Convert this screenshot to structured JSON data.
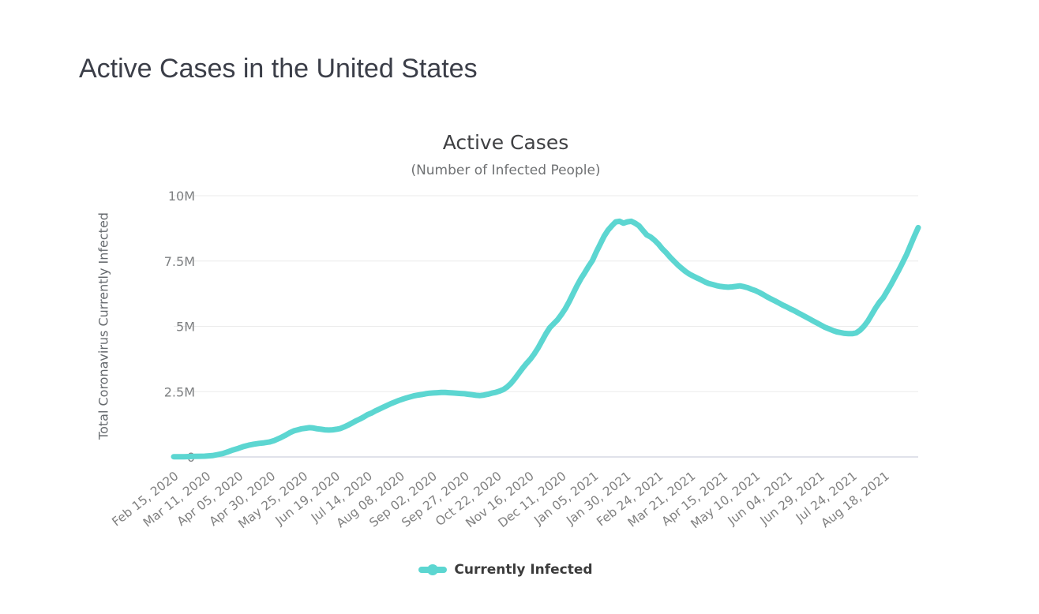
{
  "page": {
    "title": "Active Cases in the United States"
  },
  "chart": {
    "title": "Active Cases",
    "subtitle": "(Number of Infected People)",
    "y_axis_title": "Total Coronavirus Currently Infected",
    "legend_label": "Currently Infected",
    "colors": {
      "line": "#5cd6d1",
      "grid": "#ebebeb",
      "baseline": "#d6d9e4",
      "axis_text": "#7e8082",
      "tick_text": "#808080"
    }
  },
  "chart_data": {
    "type": "line",
    "title": "Active Cases",
    "subtitle": "(Number of Infected People)",
    "xlabel": "",
    "ylabel": "Total Coronavirus Currently Infected",
    "legend_position": "bottom",
    "grid": true,
    "ylim": [
      0,
      10000000
    ],
    "y_unit": "millions",
    "y_tick_values": [
      0,
      2.5,
      5,
      7.5,
      10
    ],
    "y_tick_labels": [
      "0",
      "2.5M",
      "5M",
      "7.5M",
      "10M"
    ],
    "x_tick_interval_days": 25,
    "x_range_days": 576,
    "x_tick_labels": [
      "Feb 15, 2020",
      "Mar 11, 2020",
      "Apr 05, 2020",
      "Apr 30, 2020",
      "May 25, 2020",
      "Jun 19, 2020",
      "Jul 14, 2020",
      "Aug 08, 2020",
      "Sep 02, 2020",
      "Sep 27, 2020",
      "Oct 22, 2020",
      "Nov 16, 2020",
      "Dec 11, 2020",
      "Jan 05, 2021",
      "Jan 30, 2021",
      "Feb 24, 2021",
      "Mar 21, 2021",
      "Apr 15, 2021",
      "May 10, 2021",
      "Jun 04, 2021",
      "Jun 29, 2021",
      "Jul 24, 2021",
      "Aug 18, 2021"
    ],
    "series": [
      {
        "name": "Currently Infected",
        "color": "#5cd6d1",
        "points_day_millions": [
          [
            0,
            0.01
          ],
          [
            8,
            0.01
          ],
          [
            16,
            0.02
          ],
          [
            24,
            0.03
          ],
          [
            30,
            0.05
          ],
          [
            34,
            0.09
          ],
          [
            38,
            0.13
          ],
          [
            42,
            0.2
          ],
          [
            46,
            0.27
          ],
          [
            50,
            0.33
          ],
          [
            54,
            0.4
          ],
          [
            58,
            0.45
          ],
          [
            62,
            0.49
          ],
          [
            66,
            0.52
          ],
          [
            70,
            0.54
          ],
          [
            74,
            0.57
          ],
          [
            78,
            0.63
          ],
          [
            82,
            0.72
          ],
          [
            86,
            0.82
          ],
          [
            90,
            0.93
          ],
          [
            93,
            1.0
          ],
          [
            96,
            1.04
          ],
          [
            99,
            1.08
          ],
          [
            102,
            1.1
          ],
          [
            105,
            1.12
          ],
          [
            108,
            1.11
          ],
          [
            111,
            1.08
          ],
          [
            114,
            1.06
          ],
          [
            117,
            1.04
          ],
          [
            120,
            1.03
          ],
          [
            123,
            1.04
          ],
          [
            126,
            1.06
          ],
          [
            129,
            1.09
          ],
          [
            132,
            1.15
          ],
          [
            135,
            1.22
          ],
          [
            138,
            1.3
          ],
          [
            141,
            1.38
          ],
          [
            144,
            1.45
          ],
          [
            147,
            1.53
          ],
          [
            150,
            1.62
          ],
          [
            153,
            1.68
          ],
          [
            156,
            1.76
          ],
          [
            159,
            1.83
          ],
          [
            162,
            1.9
          ],
          [
            165,
            1.97
          ],
          [
            168,
            2.04
          ],
          [
            171,
            2.1
          ],
          [
            174,
            2.16
          ],
          [
            177,
            2.21
          ],
          [
            180,
            2.26
          ],
          [
            183,
            2.3
          ],
          [
            186,
            2.34
          ],
          [
            189,
            2.37
          ],
          [
            192,
            2.39
          ],
          [
            195,
            2.42
          ],
          [
            198,
            2.44
          ],
          [
            201,
            2.45
          ],
          [
            204,
            2.46
          ],
          [
            207,
            2.47
          ],
          [
            210,
            2.47
          ],
          [
            213,
            2.46
          ],
          [
            216,
            2.45
          ],
          [
            219,
            2.44
          ],
          [
            222,
            2.43
          ],
          [
            225,
            2.42
          ],
          [
            228,
            2.4
          ],
          [
            231,
            2.38
          ],
          [
            234,
            2.36
          ],
          [
            237,
            2.35
          ],
          [
            240,
            2.37
          ],
          [
            243,
            2.4
          ],
          [
            246,
            2.44
          ],
          [
            249,
            2.47
          ],
          [
            252,
            2.52
          ],
          [
            255,
            2.58
          ],
          [
            258,
            2.68
          ],
          [
            261,
            2.82
          ],
          [
            264,
            3.0
          ],
          [
            267,
            3.2
          ],
          [
            270,
            3.4
          ],
          [
            273,
            3.58
          ],
          [
            276,
            3.75
          ],
          [
            279,
            3.95
          ],
          [
            282,
            4.18
          ],
          [
            285,
            4.45
          ],
          [
            288,
            4.72
          ],
          [
            291,
            4.95
          ],
          [
            294,
            5.1
          ],
          [
            297,
            5.25
          ],
          [
            300,
            5.45
          ],
          [
            303,
            5.68
          ],
          [
            306,
            5.95
          ],
          [
            309,
            6.25
          ],
          [
            312,
            6.55
          ],
          [
            315,
            6.82
          ],
          [
            318,
            7.05
          ],
          [
            321,
            7.3
          ],
          [
            324,
            7.52
          ],
          [
            327,
            7.85
          ],
          [
            330,
            8.15
          ],
          [
            333,
            8.45
          ],
          [
            336,
            8.68
          ],
          [
            339,
            8.85
          ],
          [
            342,
            9.0
          ],
          [
            345,
            9.02
          ],
          [
            348,
            8.95
          ],
          [
            351,
            9.0
          ],
          [
            354,
            9.02
          ],
          [
            357,
            8.95
          ],
          [
            360,
            8.85
          ],
          [
            363,
            8.67
          ],
          [
            366,
            8.5
          ],
          [
            369,
            8.42
          ],
          [
            372,
            8.3
          ],
          [
            375,
            8.15
          ],
          [
            378,
            7.97
          ],
          [
            381,
            7.82
          ],
          [
            384,
            7.65
          ],
          [
            387,
            7.5
          ],
          [
            390,
            7.35
          ],
          [
            393,
            7.22
          ],
          [
            396,
            7.1
          ],
          [
            399,
            7.0
          ],
          [
            402,
            6.92
          ],
          [
            405,
            6.85
          ],
          [
            408,
            6.78
          ],
          [
            411,
            6.7
          ],
          [
            414,
            6.64
          ],
          [
            417,
            6.6
          ],
          [
            420,
            6.56
          ],
          [
            423,
            6.53
          ],
          [
            426,
            6.51
          ],
          [
            429,
            6.5
          ],
          [
            432,
            6.51
          ],
          [
            435,
            6.53
          ],
          [
            438,
            6.55
          ],
          [
            441,
            6.52
          ],
          [
            444,
            6.48
          ],
          [
            447,
            6.42
          ],
          [
            450,
            6.37
          ],
          [
            453,
            6.3
          ],
          [
            456,
            6.22
          ],
          [
            459,
            6.13
          ],
          [
            462,
            6.05
          ],
          [
            465,
            5.98
          ],
          [
            468,
            5.9
          ],
          [
            471,
            5.82
          ],
          [
            474,
            5.75
          ],
          [
            477,
            5.67
          ],
          [
            480,
            5.6
          ],
          [
            483,
            5.52
          ],
          [
            486,
            5.44
          ],
          [
            489,
            5.36
          ],
          [
            492,
            5.28
          ],
          [
            495,
            5.2
          ],
          [
            498,
            5.12
          ],
          [
            501,
            5.04
          ],
          [
            504,
            4.96
          ],
          [
            507,
            4.9
          ],
          [
            510,
            4.84
          ],
          [
            513,
            4.79
          ],
          [
            516,
            4.76
          ],
          [
            519,
            4.73
          ],
          [
            522,
            4.72
          ],
          [
            525,
            4.72
          ],
          [
            528,
            4.75
          ],
          [
            531,
            4.85
          ],
          [
            534,
            5.0
          ],
          [
            537,
            5.2
          ],
          [
            540,
            5.45
          ],
          [
            543,
            5.7
          ],
          [
            546,
            5.92
          ],
          [
            549,
            6.1
          ],
          [
            552,
            6.35
          ],
          [
            555,
            6.6
          ],
          [
            558,
            6.88
          ],
          [
            561,
            7.15
          ],
          [
            564,
            7.45
          ],
          [
            567,
            7.75
          ],
          [
            570,
            8.1
          ],
          [
            573,
            8.45
          ],
          [
            576,
            8.78
          ]
        ]
      }
    ]
  }
}
